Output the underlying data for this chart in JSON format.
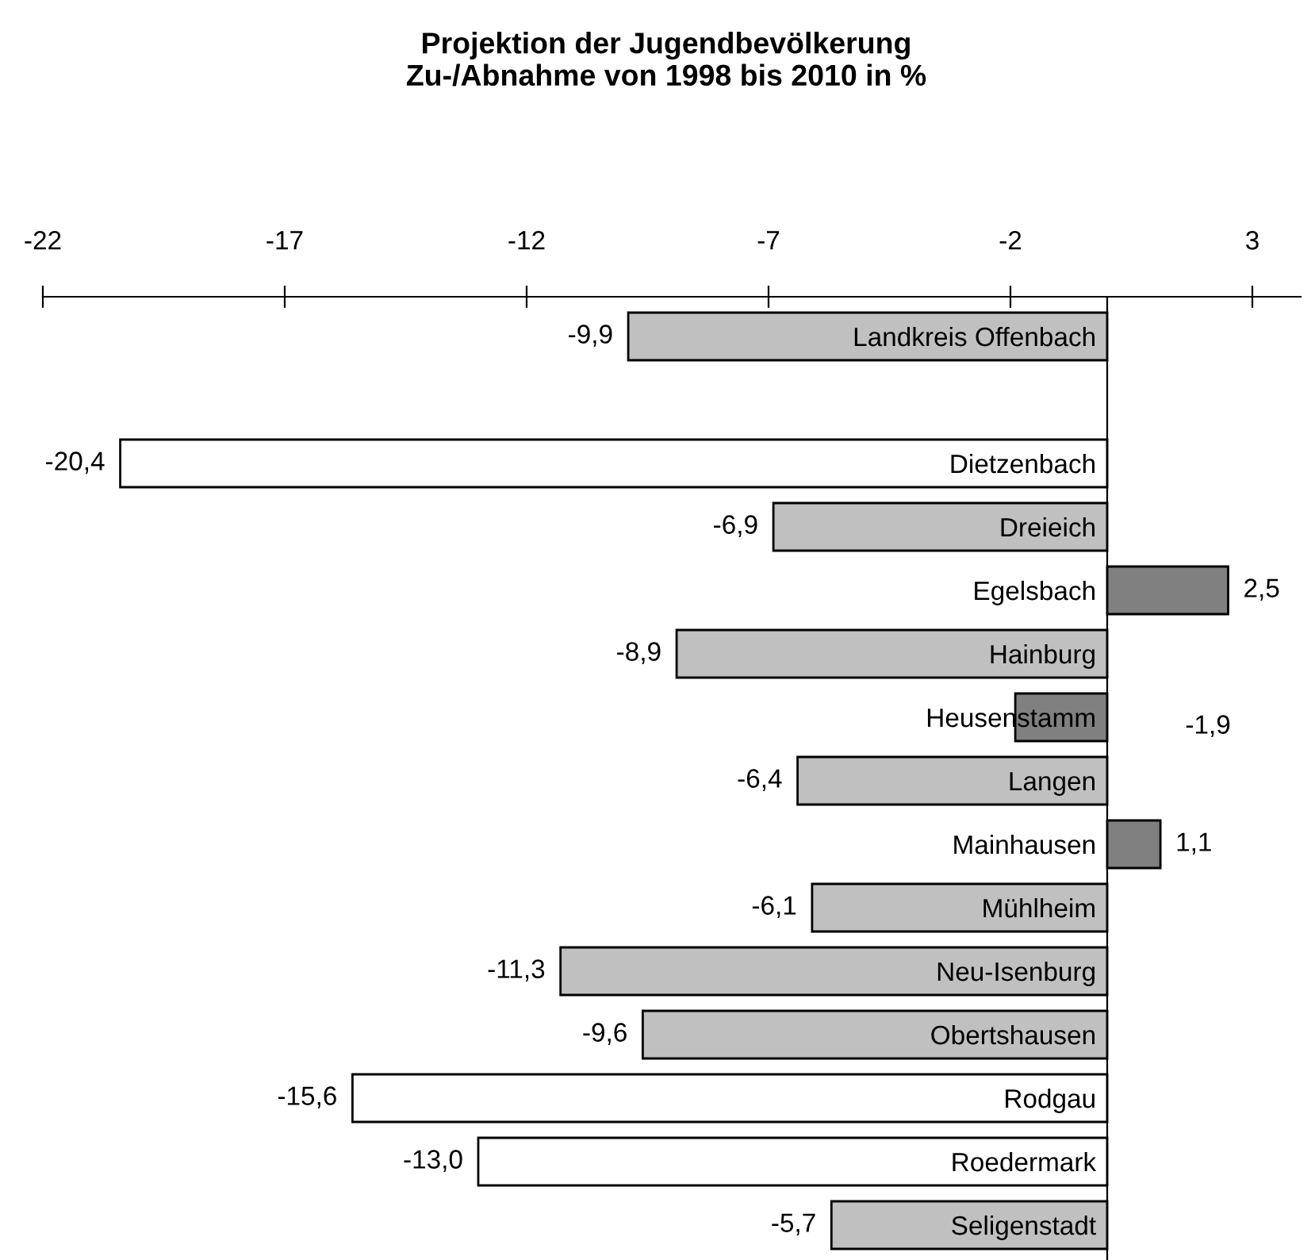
{
  "chart_data": {
    "type": "bar",
    "orientation": "horizontal",
    "title": "Projektion der Jugendbevölkerung\nZu-/Abnahme von 1998 bis 2010 in %",
    "categories": [
      "Landkreis Offenbach",
      null,
      "Dietzenbach",
      "Dreieich",
      "Egelsbach",
      "Hainburg",
      "Heusenstamm",
      "Langen",
      "Mainhausen",
      "Mühlheim",
      "Neu-Isenburg",
      "Obertshausen",
      "Rodgau",
      "Roedermark",
      "Seligenstadt"
    ],
    "values": [
      -9.9,
      null,
      -20.4,
      -6.9,
      2.5,
      -8.9,
      -1.9,
      -6.4,
      1.1,
      -6.1,
      -11.3,
      -9.6,
      -15.6,
      -13.0,
      -5.7
    ],
    "colors": [
      "#c0c0c0",
      null,
      "#ffffff",
      "#c0c0c0",
      "#808080",
      "#c0c0c0",
      "#808080",
      "#c0c0c0",
      "#808080",
      "#c0c0c0",
      "#c0c0c0",
      "#c0c0c0",
      "#ffffff",
      "#ffffff",
      "#c0c0c0"
    ],
    "value_labels": [
      "-9,9",
      null,
      "-20,4",
      "-6,9",
      "2,5",
      "-8,9",
      "-1,9",
      "-6,4",
      "1,1",
      "-6,1",
      "-11,3",
      "-9,6",
      "-15,6",
      "-13,0",
      "-5,7"
    ],
    "xlim": [
      -22,
      4
    ],
    "xticks": [
      -22,
      -17,
      -12,
      -7,
      -2,
      3
    ],
    "grid": false,
    "legend": false
  }
}
